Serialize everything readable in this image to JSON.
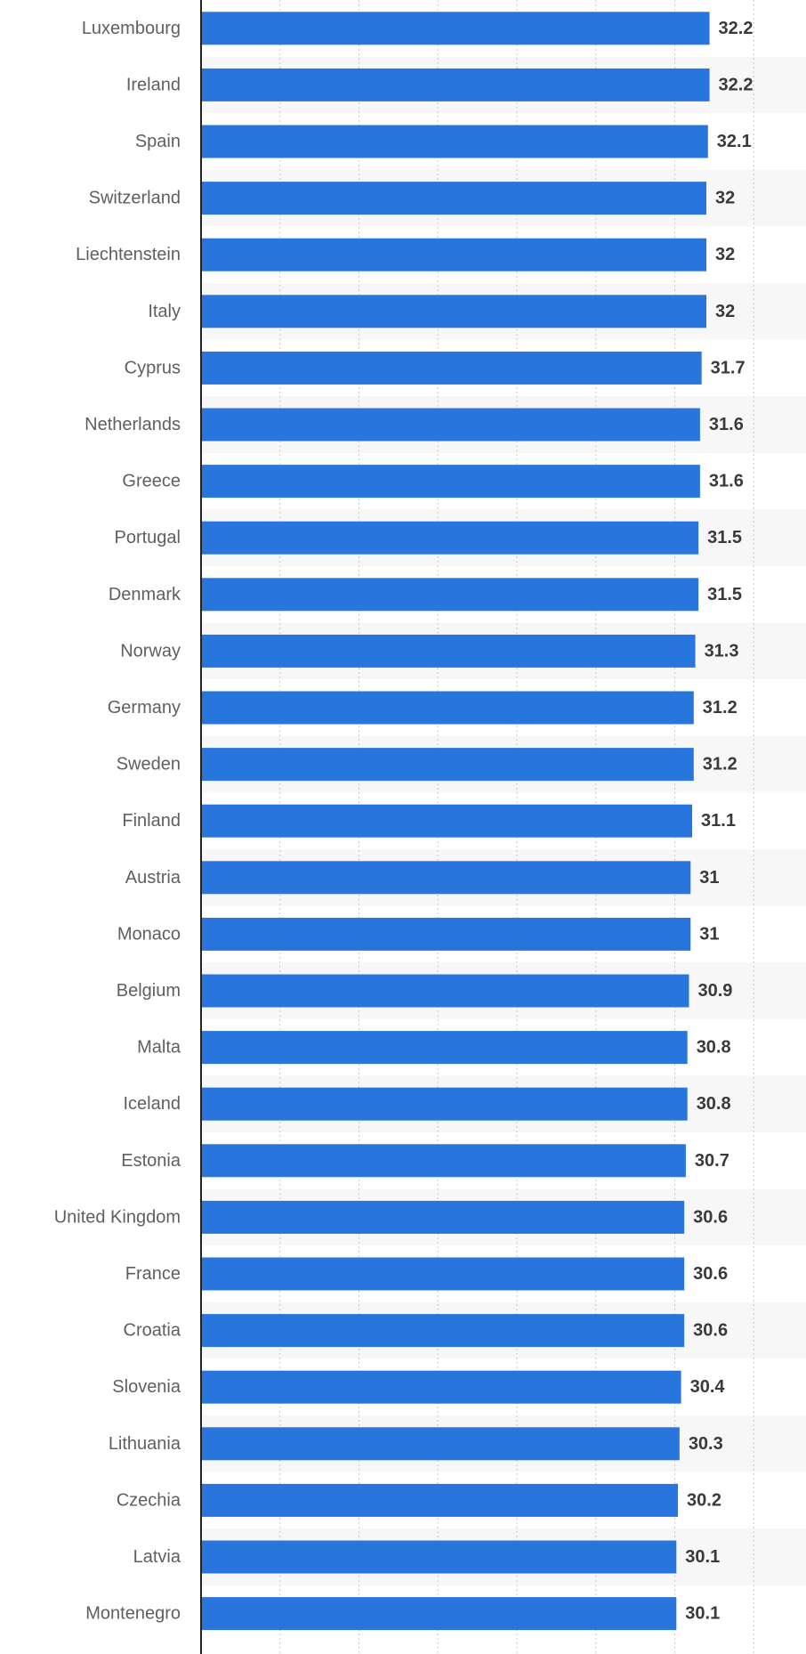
{
  "chart_data": {
    "type": "bar",
    "orientation": "horizontal",
    "title": "",
    "xlabel": "",
    "ylabel": "",
    "categories": [
      "Luxembourg",
      "Ireland",
      "Spain",
      "Switzerland",
      "Liechtenstein",
      "Italy",
      "Cyprus",
      "Netherlands",
      "Greece",
      "Portugal",
      "Denmark",
      "Norway",
      "Germany",
      "Sweden",
      "Finland",
      "Austria",
      "Monaco",
      "Belgium",
      "Malta",
      "Iceland",
      "Estonia",
      "United Kingdom",
      "France",
      "Croatia",
      "Slovenia",
      "Lithuania",
      "Czechia",
      "Latvia",
      "Montenegro"
    ],
    "values": [
      32.2,
      32.2,
      32.1,
      32,
      32,
      32,
      31.7,
      31.6,
      31.6,
      31.5,
      31.5,
      31.3,
      31.2,
      31.2,
      31.1,
      31,
      31,
      30.9,
      30.8,
      30.8,
      30.7,
      30.6,
      30.6,
      30.6,
      30.4,
      30.3,
      30.2,
      30.1,
      30.1
    ],
    "value_labels": [
      "32.2",
      "32.2",
      "32.1",
      "32",
      "32",
      "32",
      "31.7",
      "31.6",
      "31.6",
      "31.5",
      "31.5",
      "31.3",
      "31.2",
      "31.2",
      "31.1",
      "31",
      "31",
      "30.9",
      "30.8",
      "30.8",
      "30.7",
      "30.6",
      "30.6",
      "30.6",
      "30.4",
      "30.3",
      "30.2",
      "30.1",
      "30.1"
    ],
    "xlim": [
      0,
      35
    ],
    "x_grid_step": 5,
    "grid": true,
    "grid_style": "dotted",
    "alternating_row_shading": true,
    "bar_color": "#2876dd",
    "label_color": "#5f5f5f",
    "value_label_color": "#3a3a3a",
    "axis_color": "#222222",
    "grid_color": "#c9c9c9",
    "stripe_color": "#f7f7f7"
  }
}
